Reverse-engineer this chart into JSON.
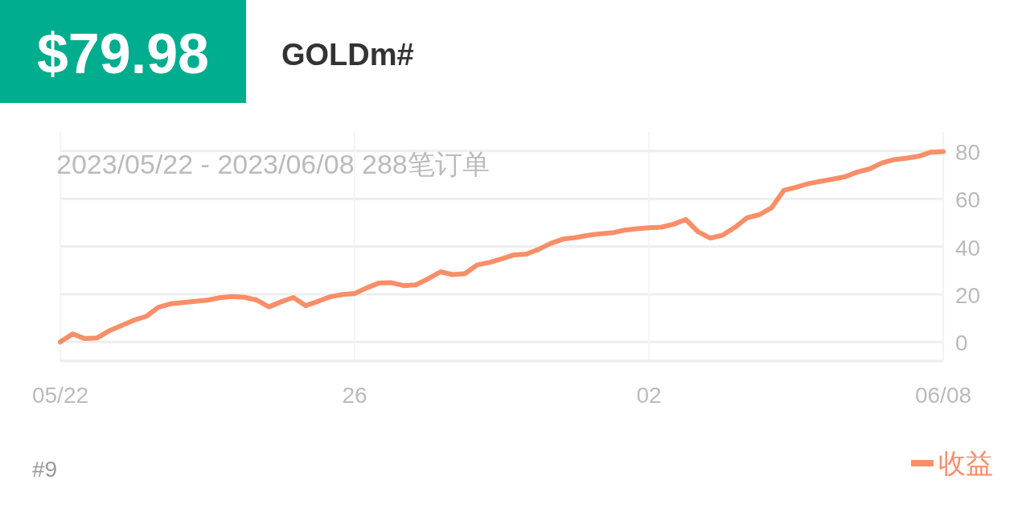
{
  "chart_data": {
    "type": "line",
    "title": "$79.98",
    "subtitle": "GOLDm#",
    "annotations": [
      "2023/05/22 - 2023/06/08  288笔订单",
      "#9"
    ],
    "categories": [
      "05/22",
      null,
      null,
      null,
      null,
      null,
      null,
      null,
      null,
      null,
      null,
      null,
      null,
      null,
      null,
      null,
      null,
      null,
      null,
      null,
      null,
      null,
      null,
      null,
      "26",
      null,
      null,
      null,
      null,
      null,
      null,
      null,
      null,
      null,
      null,
      null,
      null,
      null,
      null,
      null,
      null,
      null,
      null,
      null,
      null,
      null,
      null,
      null,
      "02",
      null,
      null,
      null,
      null,
      null,
      null,
      null,
      null,
      null,
      null,
      null,
      null,
      null,
      null,
      null,
      null,
      null,
      null,
      null,
      null,
      null,
      null,
      null,
      "06/08"
    ],
    "ylim": [
      -8,
      88
    ],
    "yticks": [
      0,
      20,
      40,
      60,
      80
    ],
    "grid": true,
    "legend": "bottom right",
    "marker": "none",
    "line_style": "solid",
    "series": [
      {
        "name": "收益",
        "color": "#f98e68",
        "values": [
          0,
          3.4,
          1.4,
          1.7,
          4.7,
          6.9,
          9.1,
          10.7,
          14.5,
          16.0,
          16.5,
          17.0,
          17.5,
          18.5,
          19.0,
          18.7,
          17.6,
          14.7,
          16.8,
          18.6,
          15.2,
          17.0,
          18.9,
          19.9,
          20.3,
          22.7,
          24.7,
          24.8,
          23.6,
          23.9,
          26.5,
          29.4,
          28.2,
          28.6,
          32.3,
          33.3,
          34.8,
          36.5,
          36.8,
          38.8,
          41.3,
          43.1,
          43.7,
          44.6,
          45.3,
          45.7,
          46.8,
          47.4,
          47.8,
          48.1,
          49.3,
          51.3,
          46.2,
          43.5,
          44.7,
          48.0,
          52.0,
          53.3,
          56.2,
          63.5,
          64.8,
          66.3,
          67.3,
          68.2,
          69.2,
          71.2,
          72.5,
          75.0,
          76.4,
          77.0,
          77.8,
          79.5,
          79.7
        ]
      }
    ]
  }
}
